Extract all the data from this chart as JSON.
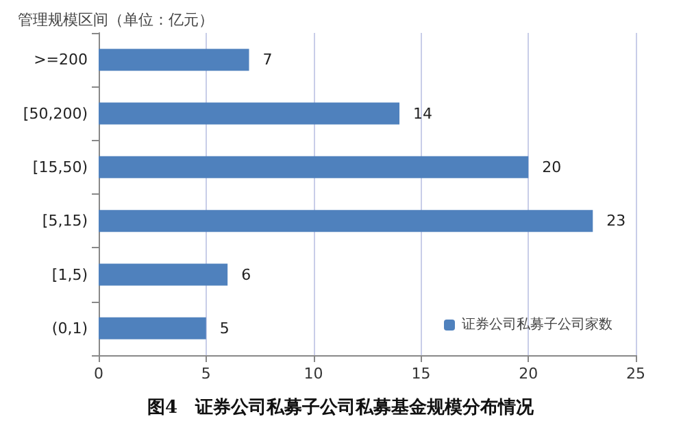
{
  "chart_data": {
    "type": "bar",
    "orientation": "horizontal",
    "title": "图4　证券公司私募子公司私募基金规模分布情况",
    "ylabel": "管理规模区间（单位：亿元）",
    "categories": [
      ">=200",
      "[50,200)",
      "[15,50)",
      "[5,15)",
      "[1,5)",
      "(0,1)"
    ],
    "series": [
      {
        "name": "证券公司私募子公司家数",
        "color": "#4f81bd",
        "values": [
          7,
          14,
          20,
          23,
          6,
          5
        ]
      }
    ],
    "xlim": [
      0,
      25
    ],
    "xticks": [
      0,
      5,
      10,
      15,
      20,
      25
    ],
    "grid": "x",
    "legend": "bottom right",
    "data_labels": true
  }
}
